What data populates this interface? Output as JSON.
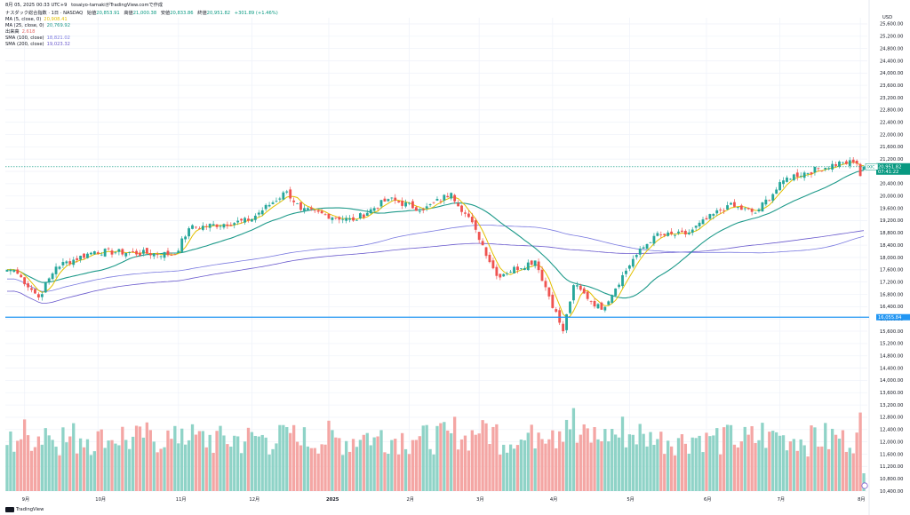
{
  "header": {
    "timestamp": "8月 05, 2025 00:33 UTC+9",
    "publisher": "tosaiyo-tamaki",
    "publisher_suffix": "がTradingView.comで作成",
    "symbol_line": "ナスダック総合指数 · 1日 · NASDAQ",
    "ohlc": {
      "open_label": "始値",
      "open": "20,853.91",
      "high_label": "高値",
      "high": "21,000.38",
      "low_label": "安値",
      "low": "20,833.86",
      "close_label": "終値",
      "close": "20,951.82",
      "change": "+301.89 (+1.46%)"
    },
    "indicators": [
      {
        "label": "MA (5, close, 0)",
        "value": "20,908.41",
        "color": "#e3c000"
      },
      {
        "label": "MA (25, close, 0)",
        "value": "20,769.92",
        "color": "#1e9a8a"
      },
      {
        "label": "出来高",
        "value": "2.618",
        "color": "#e36666"
      },
      {
        "label": "SMA (100, close)",
        "value": "18,821.02",
        "color": "#7a7ae0"
      },
      {
        "label": "SMA (200, close)",
        "value": "19,023.32",
        "color": "#6a5acd"
      }
    ]
  },
  "price_axis": {
    "currency": "USD",
    "labels": [
      "25,600.00",
      "25,200.00",
      "24,800.00",
      "24,400.00",
      "24,000.00",
      "23,600.00",
      "23,200.00",
      "22,800.00",
      "22,400.00",
      "22,000.00",
      "21,600.00",
      "21,200.00",
      "20,800.00",
      "20,400.00",
      "20,000.00",
      "19,600.00",
      "19,200.00",
      "18,800.00",
      "18,400.00",
      "18,000.00",
      "17,600.00",
      "17,200.00",
      "16,800.00",
      "16,400.00",
      "16,000.00",
      "15,600.00",
      "15,200.00",
      "14,800.00",
      "14,400.00",
      "14,000.00",
      "13,600.00",
      "13,200.00",
      "12,800.00",
      "12,400.00",
      "12,000.00",
      "11,600.00",
      "11,200.00",
      "10,800.00",
      "10,400.00"
    ]
  },
  "price_tags": {
    "symbol_tag": "IXIC",
    "last_price": "20,951.82",
    "countdown": "07:41:22",
    "hline_price": "16,055.84"
  },
  "time_axis": {
    "labels": [
      "9月",
      "10月",
      "11月",
      "12月",
      "2025",
      "2月",
      "3月",
      "4月",
      "5月",
      "6月",
      "7月",
      "8月"
    ]
  },
  "brand": "TradingView",
  "colors": {
    "up": "#26a69a",
    "down": "#ef5350",
    "vol_up": "#8fd3c7",
    "vol_down": "#f4a6a4",
    "ma5": "#e3c000",
    "ma25": "#1e9a8a",
    "sma100": "#7a7ae0",
    "sma200": "#6a5acd",
    "hline": "#2196f3"
  },
  "chart_data": {
    "type": "candlestick",
    "period": "1日",
    "ylim": [
      10400,
      25800
    ],
    "keypoints": [
      {
        "date": "2024-08-28",
        "close": 17600
      },
      {
        "date": "2024-09-06",
        "close": 16700
      },
      {
        "date": "2024-09-13",
        "close": 17700
      },
      {
        "date": "2024-09-30",
        "close": 18200
      },
      {
        "date": "2024-10-31",
        "close": 18100
      },
      {
        "date": "2024-11-06",
        "close": 18950
      },
      {
        "date": "2024-11-29",
        "close": 19200
      },
      {
        "date": "2024-12-16",
        "close": 20150
      },
      {
        "date": "2024-12-20",
        "close": 19550
      },
      {
        "date": "2025-01-10",
        "close": 19200
      },
      {
        "date": "2025-01-24",
        "close": 19900
      },
      {
        "date": "2025-02-07",
        "close": 19550
      },
      {
        "date": "2025-02-19",
        "close": 20100
      },
      {
        "date": "2025-02-28",
        "close": 18900
      },
      {
        "date": "2025-03-10",
        "close": 17400
      },
      {
        "date": "2025-03-25",
        "close": 17900
      },
      {
        "date": "2025-04-04",
        "close": 15600
      },
      {
        "date": "2025-04-09",
        "close": 17100
      },
      {
        "date": "2025-04-21",
        "close": 16300
      },
      {
        "date": "2025-05-02",
        "close": 17950
      },
      {
        "date": "2025-05-12",
        "close": 18700
      },
      {
        "date": "2025-05-23",
        "close": 18750
      },
      {
        "date": "2025-06-10",
        "close": 19700
      },
      {
        "date": "2025-06-20",
        "close": 19450
      },
      {
        "date": "2025-07-03",
        "close": 20600
      },
      {
        "date": "2025-07-25",
        "close": 21100
      },
      {
        "date": "2025-07-31",
        "close": 21050
      },
      {
        "date": "2025-08-01",
        "close": 20650
      },
      {
        "date": "2025-08-04",
        "close": 20951.82
      }
    ],
    "last_candle": {
      "open": 20853.91,
      "high": 21000.38,
      "low": 20833.86,
      "close": 20951.82
    },
    "series": [
      {
        "name": "MA (5, close, 0)",
        "last": 20908.41
      },
      {
        "name": "MA (25, close, 0)",
        "last": 20769.92
      },
      {
        "name": "SMA (100, close)",
        "last": 18821.02
      },
      {
        "name": "SMA (200, close)",
        "last": 19023.32
      }
    ],
    "horizontal_line": 16055.84,
    "volume_last": "2.618"
  }
}
